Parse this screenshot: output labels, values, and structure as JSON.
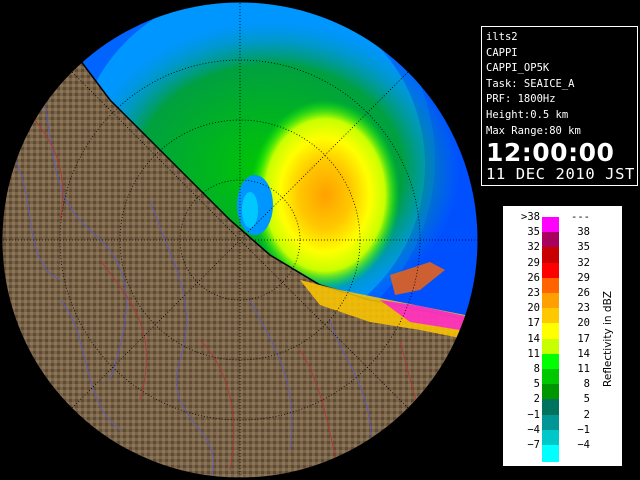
{
  "radar_panel": {
    "rings": [
      20,
      40,
      60,
      80
    ],
    "max_range": 80
  },
  "info": {
    "site": "ilts2",
    "product": "CAPPI",
    "product_name": "CAPPI_OP5K",
    "task": "Task: SEAICE_A",
    "prf": "PRF: 1800Hz",
    "height": "Height:0.5 km",
    "max_range": "Max Range:80 km",
    "time": "12:00:00",
    "date": "11 DEC 2010 JST"
  },
  "legend": {
    "unit": "Reflectivity in dBZ",
    "rows": [
      {
        "lo": ">38",
        "hi": "---",
        "color": "#ff00ff"
      },
      {
        "lo": "35",
        "hi": "38",
        "color": "#a8005c"
      },
      {
        "lo": "32",
        "hi": "35",
        "color": "#c80000"
      },
      {
        "lo": "29",
        "hi": "32",
        "color": "#ff0000"
      },
      {
        "lo": "26",
        "hi": "29",
        "color": "#ff6400"
      },
      {
        "lo": "23",
        "hi": "26",
        "color": "#ffa000"
      },
      {
        "lo": "20",
        "hi": "23",
        "color": "#ffc800"
      },
      {
        "lo": "17",
        "hi": "20",
        "color": "#ffff00"
      },
      {
        "lo": "14",
        "hi": "17",
        "color": "#c8ff00"
      },
      {
        "lo": "11",
        "hi": "14",
        "color": "#00ff00"
      },
      {
        "lo": "8",
        "hi": "11",
        "color": "#00c800"
      },
      {
        "lo": "5",
        "hi": "8",
        "color": "#009600"
      },
      {
        "lo": "2",
        "hi": "5",
        "color": "#00735f"
      },
      {
        "lo": "−1",
        "hi": "2",
        "color": "#009696"
      },
      {
        "lo": "−4",
        "hi": "−1",
        "color": "#00c8c8"
      },
      {
        "lo": "−7",
        "hi": "−4",
        "color": "#00ffff"
      }
    ]
  }
}
